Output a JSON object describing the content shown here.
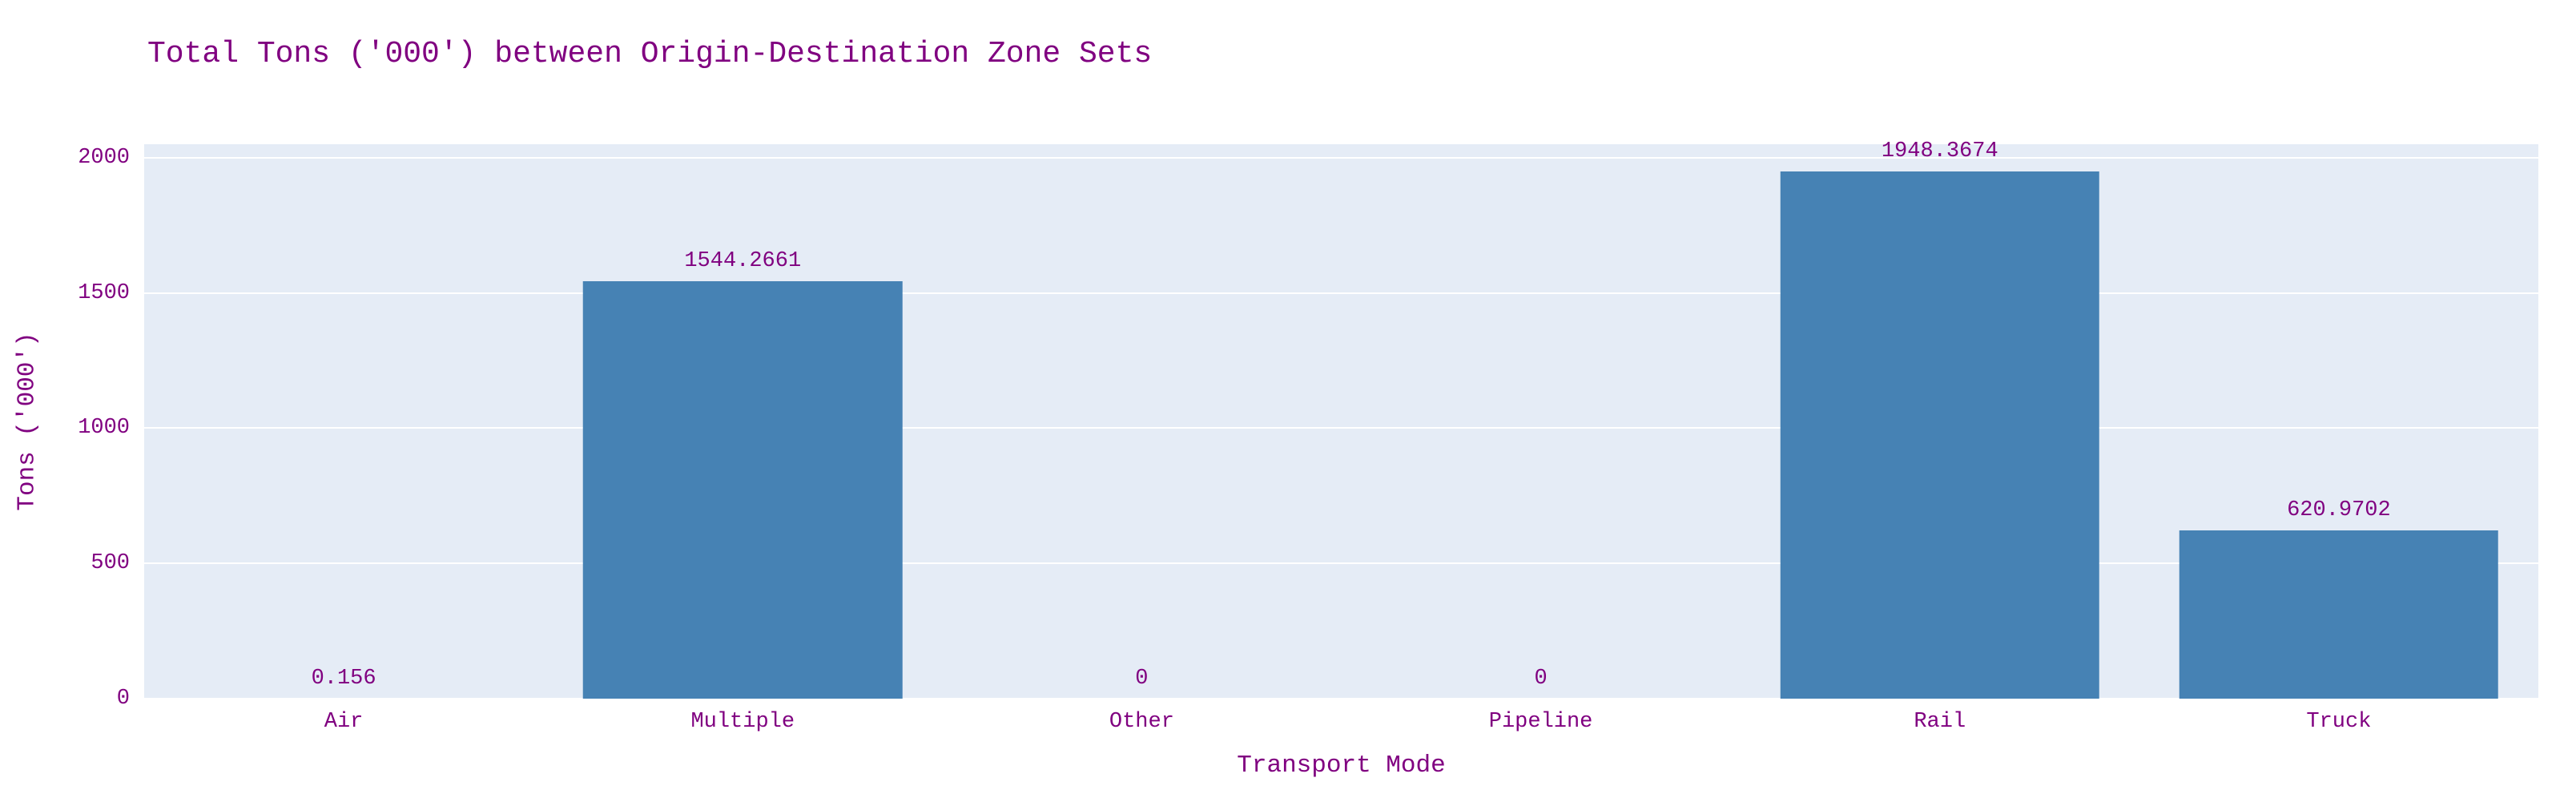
{
  "chart_data": {
    "type": "bar",
    "title": "Total Tons ('000') between Origin-Destination Zone Sets",
    "xlabel": "Transport Mode",
    "ylabel": "Tons ('000')",
    "categories": [
      "Air",
      "Multiple",
      "Other",
      "Pipeline",
      "Rail",
      "Truck"
    ],
    "values": [
      0.156,
      1544.2661,
      0,
      0,
      1948.3674,
      620.9702
    ],
    "value_labels": [
      "0.156",
      "1544.2661",
      "0",
      "0",
      "1948.3674",
      "620.9702"
    ],
    "yticks": [
      0,
      500,
      1000,
      1500,
      2000
    ],
    "ylim": [
      0,
      2050
    ],
    "grid": true,
    "legend": false,
    "bar_width_fraction": 0.8,
    "colors": {
      "bar": "#4682b4",
      "plot_background": "#e5ecf6",
      "page_background": "#ffffff",
      "grid": "#ffffff",
      "text": "#800080"
    }
  }
}
